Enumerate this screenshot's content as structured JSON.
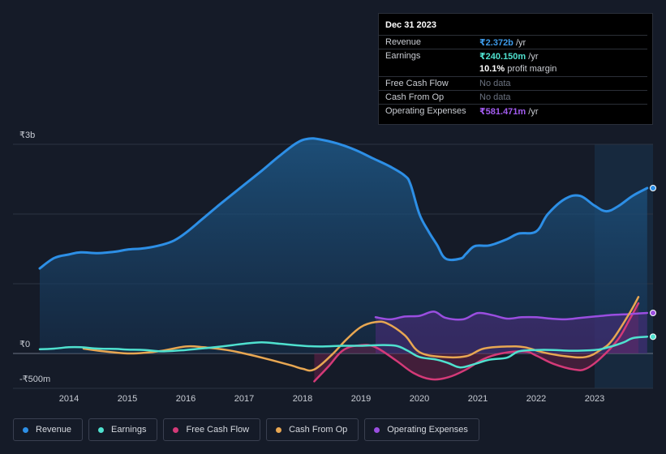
{
  "chart_data": {
    "type": "area",
    "currency_unit": "₹m",
    "y_ticks": [
      {
        "value": 3000,
        "label": "₹3b"
      },
      {
        "value": 0,
        "label": "₹0"
      },
      {
        "value": -500,
        "label": "-₹500m"
      }
    ],
    "ylim": [
      -500,
      3000
    ],
    "xlim": [
      2013.5,
      2024.0
    ],
    "x_ticks": [
      {
        "value": 2014,
        "label": "2014"
      },
      {
        "value": 2015,
        "label": "2015"
      },
      {
        "value": 2016,
        "label": "2016"
      },
      {
        "value": 2017,
        "label": "2017"
      },
      {
        "value": 2018,
        "label": "2018"
      },
      {
        "value": 2019,
        "label": "2019"
      },
      {
        "value": 2020,
        "label": "2020"
      },
      {
        "value": 2021,
        "label": "2021"
      },
      {
        "value": 2022,
        "label": "2022"
      },
      {
        "value": 2023,
        "label": "2023"
      }
    ],
    "highlight_start": 2023.0,
    "series": [
      {
        "name": "Revenue",
        "color": "#2d8fe6",
        "fill": true,
        "points": [
          [
            2013.5,
            1220
          ],
          [
            2013.75,
            1370
          ],
          [
            2014.0,
            1420
          ],
          [
            2014.2,
            1450
          ],
          [
            2014.5,
            1440
          ],
          [
            2014.8,
            1460
          ],
          [
            2015.0,
            1490
          ],
          [
            2015.3,
            1510
          ],
          [
            2015.6,
            1560
          ],
          [
            2015.8,
            1620
          ],
          [
            2016.0,
            1730
          ],
          [
            2016.3,
            1940
          ],
          [
            2016.6,
            2150
          ],
          [
            2017.0,
            2420
          ],
          [
            2017.3,
            2620
          ],
          [
            2017.6,
            2830
          ],
          [
            2017.9,
            3020
          ],
          [
            2018.1,
            3080
          ],
          [
            2018.3,
            3070
          ],
          [
            2018.6,
            3010
          ],
          [
            2018.9,
            2920
          ],
          [
            2019.2,
            2800
          ],
          [
            2019.5,
            2680
          ],
          [
            2019.75,
            2550
          ],
          [
            2019.85,
            2420
          ],
          [
            2020.0,
            2000
          ],
          [
            2020.15,
            1760
          ],
          [
            2020.3,
            1560
          ],
          [
            2020.45,
            1360
          ],
          [
            2020.7,
            1360
          ],
          [
            2020.8,
            1430
          ],
          [
            2020.95,
            1540
          ],
          [
            2021.2,
            1550
          ],
          [
            2021.5,
            1640
          ],
          [
            2021.7,
            1720
          ],
          [
            2022.0,
            1750
          ],
          [
            2022.2,
            2000
          ],
          [
            2022.5,
            2220
          ],
          [
            2022.75,
            2260
          ],
          [
            2023.0,
            2120
          ],
          [
            2023.2,
            2040
          ],
          [
            2023.4,
            2110
          ],
          [
            2023.65,
            2260
          ],
          [
            2023.9,
            2372
          ]
        ]
      },
      {
        "name": "Earnings",
        "color": "#4fe1cf",
        "fill": false,
        "points": [
          [
            2013.5,
            60
          ],
          [
            2013.75,
            70
          ],
          [
            2014.0,
            90
          ],
          [
            2014.2,
            90
          ],
          [
            2014.5,
            70
          ],
          [
            2014.8,
            65
          ],
          [
            2015.0,
            55
          ],
          [
            2015.3,
            50
          ],
          [
            2015.6,
            30
          ],
          [
            2016.0,
            50
          ],
          [
            2016.5,
            90
          ],
          [
            2016.8,
            120
          ],
          [
            2017.0,
            140
          ],
          [
            2017.3,
            160
          ],
          [
            2017.6,
            140
          ],
          [
            2018.0,
            110
          ],
          [
            2018.3,
            100
          ],
          [
            2018.7,
            110
          ],
          [
            2019.0,
            110
          ],
          [
            2019.3,
            120
          ],
          [
            2019.6,
            110
          ],
          [
            2019.8,
            40
          ],
          [
            2020.0,
            -50
          ],
          [
            2020.3,
            -90
          ],
          [
            2020.5,
            -140
          ],
          [
            2020.7,
            -200
          ],
          [
            2020.95,
            -150
          ],
          [
            2021.2,
            -90
          ],
          [
            2021.5,
            -60
          ],
          [
            2021.7,
            30
          ],
          [
            2022.0,
            50
          ],
          [
            2022.3,
            50
          ],
          [
            2022.6,
            40
          ],
          [
            2023.0,
            50
          ],
          [
            2023.2,
            80
          ],
          [
            2023.5,
            160
          ],
          [
            2023.65,
            220
          ],
          [
            2023.9,
            240.15
          ]
        ]
      },
      {
        "name": "Free Cash Flow",
        "color": "#d43a78",
        "fill": true,
        "fill_start": 2018.2,
        "points": [
          [
            2018.2,
            -400
          ],
          [
            2018.45,
            -180
          ],
          [
            2018.7,
            50
          ],
          [
            2019.0,
            120
          ],
          [
            2019.25,
            90
          ],
          [
            2019.6,
            -100
          ],
          [
            2019.9,
            -280
          ],
          [
            2020.2,
            -370
          ],
          [
            2020.5,
            -340
          ],
          [
            2020.8,
            -230
          ],
          [
            2021.1,
            -80
          ],
          [
            2021.4,
            0
          ],
          [
            2021.8,
            30
          ],
          [
            2022.0,
            -30
          ],
          [
            2022.3,
            -150
          ],
          [
            2022.65,
            -230
          ],
          [
            2022.85,
            -220
          ],
          [
            2023.1,
            -70
          ],
          [
            2023.4,
            200
          ],
          [
            2023.6,
            490
          ],
          [
            2023.75,
            720
          ]
        ]
      },
      {
        "name": "Cash From Op",
        "color": "#e8a752",
        "fill": false,
        "points": [
          [
            2014.25,
            70
          ],
          [
            2014.6,
            30
          ],
          [
            2015.0,
            0
          ],
          [
            2015.3,
            10
          ],
          [
            2015.6,
            40
          ],
          [
            2016.0,
            100
          ],
          [
            2016.3,
            90
          ],
          [
            2016.7,
            50
          ],
          [
            2017.0,
            0
          ],
          [
            2017.4,
            -80
          ],
          [
            2017.8,
            -170
          ],
          [
            2018.0,
            -220
          ],
          [
            2018.2,
            -230
          ],
          [
            2018.5,
            -20
          ],
          [
            2018.75,
            200
          ],
          [
            2019.0,
            380
          ],
          [
            2019.25,
            450
          ],
          [
            2019.45,
            430
          ],
          [
            2019.75,
            260
          ],
          [
            2020.0,
            20
          ],
          [
            2020.4,
            -50
          ],
          [
            2020.8,
            -40
          ],
          [
            2021.1,
            70
          ],
          [
            2021.5,
            100
          ],
          [
            2021.8,
            90
          ],
          [
            2022.1,
            20
          ],
          [
            2022.5,
            -40
          ],
          [
            2022.85,
            -50
          ],
          [
            2023.1,
            50
          ],
          [
            2023.3,
            190
          ],
          [
            2023.6,
            580
          ],
          [
            2023.75,
            810
          ]
        ]
      },
      {
        "name": "Operating Expenses",
        "color": "#9a4ee0",
        "fill": true,
        "fill_start": 2019.25,
        "points": [
          [
            2019.25,
            520
          ],
          [
            2019.5,
            490
          ],
          [
            2019.75,
            530
          ],
          [
            2020.0,
            540
          ],
          [
            2020.25,
            600
          ],
          [
            2020.45,
            510
          ],
          [
            2020.75,
            490
          ],
          [
            2021.0,
            580
          ],
          [
            2021.25,
            550
          ],
          [
            2021.5,
            500
          ],
          [
            2021.75,
            520
          ],
          [
            2022.0,
            520
          ],
          [
            2022.25,
            500
          ],
          [
            2022.5,
            490
          ],
          [
            2022.75,
            510
          ],
          [
            2023.0,
            530
          ],
          [
            2023.25,
            550
          ],
          [
            2023.5,
            560
          ],
          [
            2023.75,
            575
          ],
          [
            2023.9,
            581.471
          ]
        ]
      }
    ]
  },
  "tooltip": {
    "date": "Dec 31 2023",
    "rows": [
      {
        "label": "Revenue",
        "value": "₹2.372b",
        "unit": " /yr",
        "color": "#3d9ae8"
      },
      {
        "label": "Earnings",
        "value": "₹240.150m",
        "unit": " /yr",
        "color": "#4fe1cf"
      },
      {
        "label": "",
        "value": "10.1%",
        "unit": " profit margin",
        "color": "#ffffff"
      },
      {
        "label": "Free Cash Flow",
        "value": "No data",
        "unit": "",
        "color": "nodata"
      },
      {
        "label": "Cash From Op",
        "value": "No data",
        "unit": "",
        "color": "nodata"
      },
      {
        "label": "Operating Expenses",
        "value": "₹581.471m",
        "unit": " /yr",
        "color": "#a35cf0"
      }
    ]
  },
  "legend": [
    {
      "label": "Revenue",
      "color": "#2d8fe6"
    },
    {
      "label": "Earnings",
      "color": "#4fe1cf"
    },
    {
      "label": "Free Cash Flow",
      "color": "#d43a78"
    },
    {
      "label": "Cash From Op",
      "color": "#e8a752"
    },
    {
      "label": "Operating Expenses",
      "color": "#9a4ee0"
    }
  ]
}
